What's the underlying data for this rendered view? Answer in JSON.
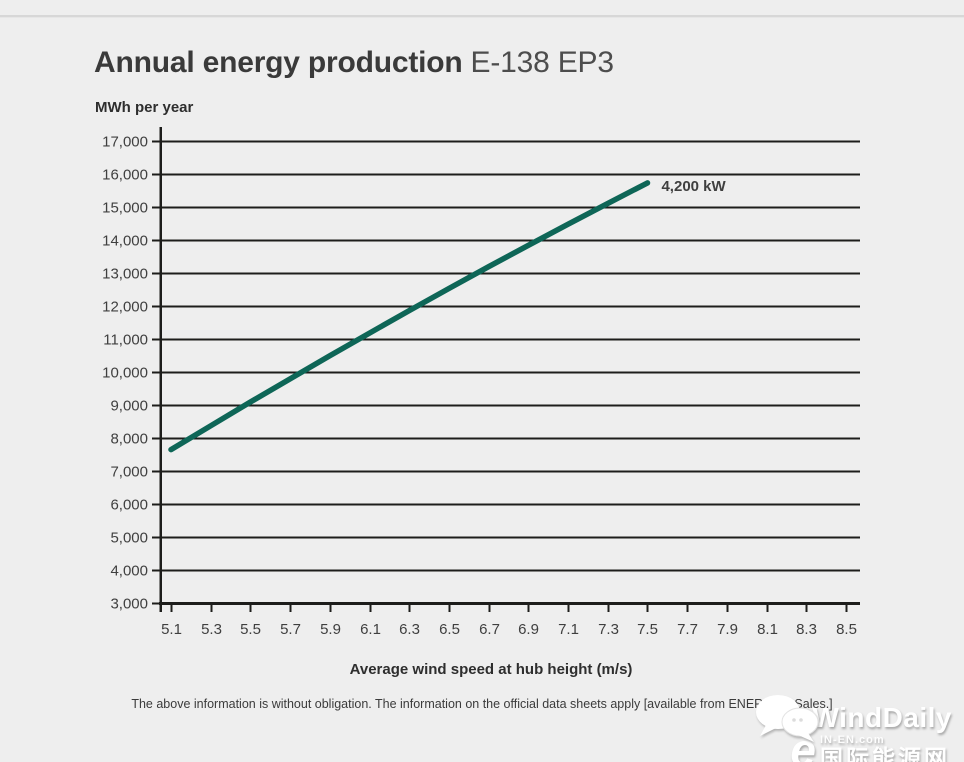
{
  "header": {
    "title_main": "Annual energy production",
    "title_model": "E-138 EP3"
  },
  "chart_data": {
    "type": "line",
    "title": "Annual energy production E-138 EP3",
    "ylabel": "MWh per year",
    "xlabel": "Average wind speed at hub height (m/s)",
    "grid": "horizontal",
    "legend_position": "annotation-at-line-end",
    "ylim": [
      3000,
      17000
    ],
    "xlim": [
      5.1,
      8.5
    ],
    "y_ticks": [
      3000,
      4000,
      5000,
      6000,
      7000,
      8000,
      9000,
      10000,
      11000,
      12000,
      13000,
      14000,
      15000,
      16000,
      17000
    ],
    "y_tick_labels": [
      "3,000",
      "4,000",
      "5,000",
      "6,000",
      "7,000",
      "8,000",
      "9,000",
      "10,000",
      "11,000",
      "12,000",
      "13,000",
      "14,000",
      "15,000",
      "16,000",
      "17,000"
    ],
    "x_ticks": [
      5.1,
      5.3,
      5.5,
      5.7,
      5.9,
      6.1,
      6.3,
      6.5,
      6.7,
      6.9,
      7.1,
      7.3,
      7.5,
      7.7,
      7.9,
      8.1,
      8.3,
      8.5
    ],
    "x_tick_labels": [
      "5.1",
      "5.3",
      "5.5",
      "5.7",
      "5.9",
      "6.1",
      "6.3",
      "6.5",
      "6.7",
      "6.9",
      "7.1",
      "7.3",
      "7.5",
      "7.7",
      "7.9",
      "8.1",
      "8.3",
      "8.5"
    ],
    "x": [
      5.1,
      5.3,
      5.5,
      5.7,
      5.9,
      6.1,
      6.3,
      6.5,
      6.7,
      6.9,
      7.1,
      7.3,
      7.5
    ],
    "series": [
      {
        "name": "4,200 kW",
        "values": [
          7650,
          8370,
          9090,
          9790,
          10490,
          11180,
          11860,
          12530,
          13190,
          13840,
          14480,
          15110,
          15730
        ]
      }
    ],
    "line_color": "#0e6657",
    "grid_color": "#1d1d1b",
    "label_color": "#3f3f3f"
  },
  "footer": {
    "disclaimer": "The above information is without obligation. The information on the official data sheets apply [available from ENERCON Sales.]"
  },
  "watermark": {
    "brand": "WindDaily",
    "logo_letter": "e",
    "site_url": "IN-EN.com",
    "site_cn": "国际能源网"
  }
}
